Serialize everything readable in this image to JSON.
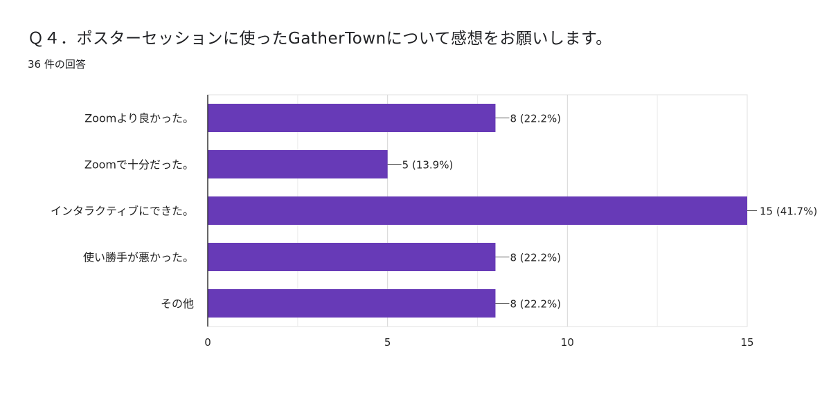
{
  "header": {
    "title": "Ｑ４．ポスターセッションに使ったGatherTownについて感想をお願いします。",
    "response_count": "36 件の回答"
  },
  "colors": {
    "bar": "#673ab7",
    "grid": "#e0e0e0",
    "axis": "#333333",
    "text": "#222222"
  },
  "chart_data": {
    "type": "bar",
    "orientation": "horizontal",
    "categories": [
      "Zoomより良かった。",
      "Zoomで十分だった。",
      "インタラクティブにできた。",
      "使い勝手が悪かった。",
      "その他"
    ],
    "values": [
      8,
      5,
      15,
      8,
      8
    ],
    "data_labels": [
      "8 (22.2%)",
      "5 (13.9%)",
      "15 (41.7%)",
      "8 (22.2%)",
      "8 (22.2%)"
    ],
    "xlim": [
      0,
      15
    ],
    "xticks": [
      0,
      5,
      10,
      15
    ],
    "grid": true,
    "legend": "none"
  }
}
